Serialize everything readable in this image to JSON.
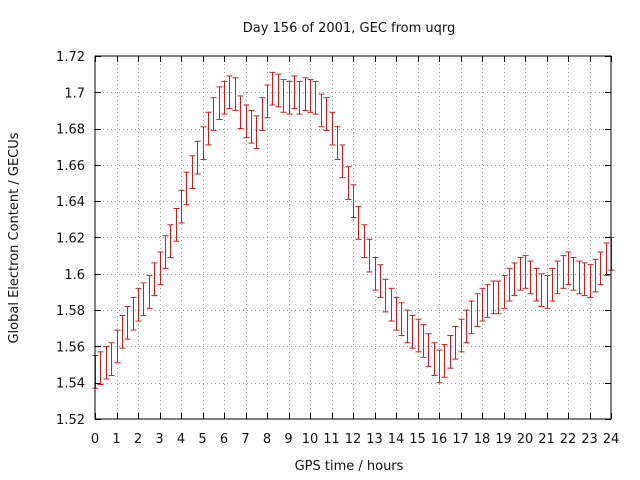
{
  "chart_data": {
    "type": "errorbar",
    "title": "Day 156 of 2001, GEC from uqrg",
    "xlabel": "GPS time / hours",
    "ylabel": "Global Electron Content / GECUs",
    "xlim": [
      0,
      24
    ],
    "ylim": [
      1.52,
      1.72
    ],
    "xticks": [
      0,
      1,
      2,
      3,
      4,
      5,
      6,
      7,
      8,
      9,
      10,
      11,
      12,
      13,
      14,
      15,
      16,
      17,
      18,
      19,
      20,
      21,
      22,
      23,
      24
    ],
    "yticks": [
      1.52,
      1.54,
      1.56,
      1.58,
      1.6,
      1.62,
      1.64,
      1.66,
      1.68,
      1.7,
      1.72
    ],
    "ytick_labels": [
      "1.52",
      "1.54",
      "1.56",
      "1.58",
      "1.6",
      "1.62",
      "1.64",
      "1.66",
      "1.68",
      "1.7",
      "1.72"
    ],
    "grid": true,
    "color": "#cc1e1e",
    "error": 0.009,
    "series": [
      {
        "x": [
          0,
          0.25,
          0.5,
          0.75,
          1,
          1.25,
          1.5,
          1.75,
          2,
          2.25,
          2.5,
          2.75,
          3,
          3.25,
          3.5,
          3.75,
          4,
          4.25,
          4.5,
          4.75,
          5,
          5.25,
          5.5,
          5.75,
          6,
          6.25,
          6.5,
          6.75,
          7,
          7.25,
          7.5,
          7.75,
          8,
          8.25,
          8.5,
          8.75,
          9,
          9.25,
          9.5,
          9.75,
          10,
          10.25,
          10.5,
          10.75,
          11,
          11.25,
          11.5,
          11.75,
          12,
          12.25,
          12.5,
          12.75,
          13,
          13.25,
          13.5,
          13.75,
          14,
          14.25,
          14.5,
          14.75,
          15,
          15.25,
          15.5,
          15.75,
          16,
          16.25,
          16.5,
          16.75,
          17,
          17.25,
          17.5,
          17.75,
          18,
          18.25,
          18.5,
          18.75,
          19,
          19.25,
          19.5,
          19.75,
          20,
          20.25,
          20.5,
          20.75,
          21,
          21.25,
          21.5,
          21.75,
          22,
          22.25,
          22.5,
          22.75,
          23,
          23.25,
          23.5,
          23.75,
          24
        ],
        "y": [
          1.546,
          1.548,
          1.551,
          1.553,
          1.56,
          1.568,
          1.573,
          1.578,
          1.583,
          1.586,
          1.59,
          1.597,
          1.603,
          1.612,
          1.618,
          1.627,
          1.637,
          1.647,
          1.656,
          1.664,
          1.672,
          1.68,
          1.688,
          1.694,
          1.697,
          1.7,
          1.699,
          1.689,
          1.684,
          1.681,
          1.678,
          1.688,
          1.695,
          1.702,
          1.701,
          1.698,
          1.697,
          1.7,
          1.697,
          1.699,
          1.698,
          1.697,
          1.69,
          1.688,
          1.68,
          1.672,
          1.662,
          1.65,
          1.64,
          1.628,
          1.618,
          1.61,
          1.6,
          1.596,
          1.588,
          1.583,
          1.578,
          1.575,
          1.571,
          1.568,
          1.566,
          1.563,
          1.558,
          1.553,
          1.549,
          1.552,
          1.557,
          1.562,
          1.566,
          1.571,
          1.576,
          1.58,
          1.583,
          1.585,
          1.587,
          1.587,
          1.59,
          1.594,
          1.597,
          1.6,
          1.601,
          1.598,
          1.594,
          1.591,
          1.59,
          1.594,
          1.598,
          1.601,
          1.603,
          1.6,
          1.598,
          1.597,
          1.596,
          1.599,
          1.603,
          1.608,
          1.611
        ]
      }
    ]
  }
}
